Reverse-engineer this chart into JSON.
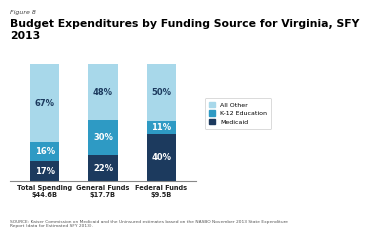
{
  "figure_label": "Figure 8",
  "title": "Budget Expenditures by Funding Source for Virginia, SFY\n2013",
  "categories": [
    "Total Spending\n$44.6B",
    "General Funds\n$17.7B",
    "Federal Funds\n$9.5B"
  ],
  "medicaid": [
    17,
    22,
    40
  ],
  "k12": [
    16,
    30,
    11
  ],
  "all_other": [
    67,
    48,
    50
  ],
  "colors": {
    "medicaid": "#1c3a5e",
    "k12": "#2e9ac4",
    "all_other": "#a8d8ea"
  },
  "legend_labels": [
    "All Other",
    "K-12 Education",
    "Medicaid"
  ],
  "source_text": "SOURCE: Kaiser Commission on Medicaid and the Uninsured estimates based on the NASBO November 2013 State Expenditure\nReport (data for Estimated SFY 2013).",
  "bar_width": 0.5,
  "ylim": [
    0,
    100
  ]
}
